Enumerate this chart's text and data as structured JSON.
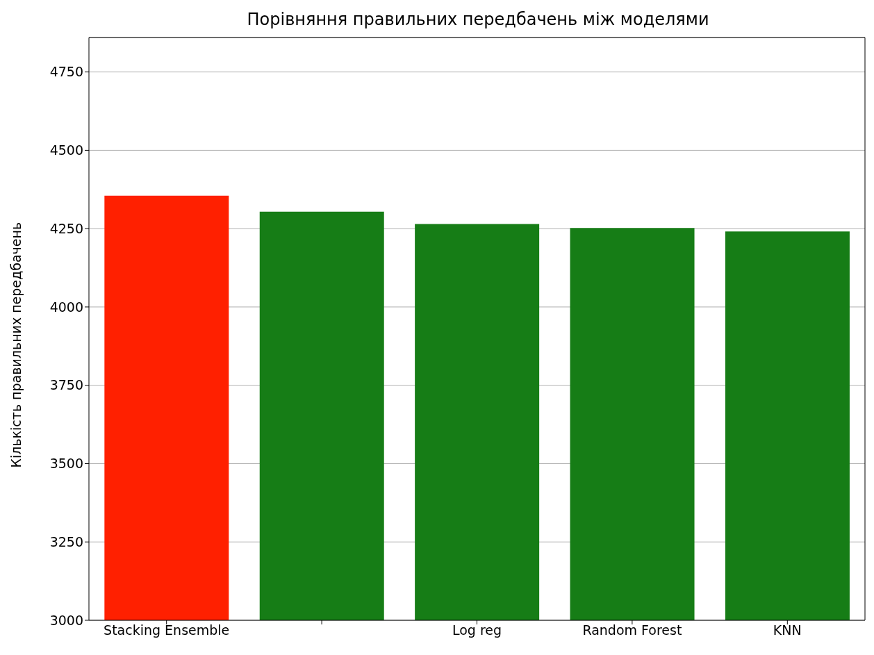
{
  "chart_data": {
    "type": "bar",
    "title": "Порівняння правильних передбачень між моделями",
    "ylabel": "Кількість правильних передбачень",
    "categories": [
      "Stacking Ensemble",
      null,
      "Log reg",
      "Random Forest",
      "KNN"
    ],
    "values": [
      4355,
      4304,
      4265,
      4252,
      4241
    ],
    "colors": [
      "#ff2000",
      "#167d16",
      "#167d16",
      "#167d16",
      "#167d16"
    ],
    "ylim": [
      3000,
      4860
    ],
    "yticks": [
      3000,
      3250,
      3500,
      3750,
      4000,
      4250,
      4500,
      4750
    ],
    "grid": "y"
  }
}
